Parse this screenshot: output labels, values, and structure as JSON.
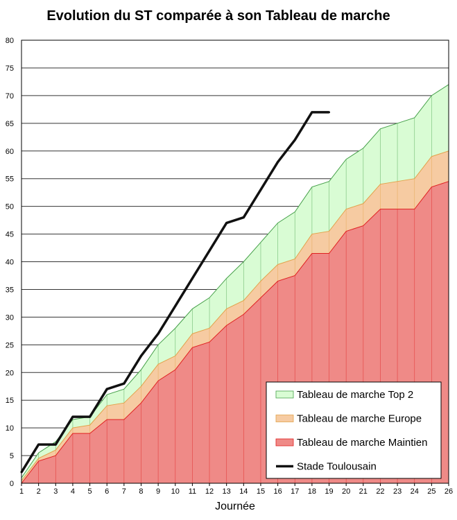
{
  "chart_data": {
    "type": "area",
    "title": "Evolution du ST comparée à son Tableau de marche",
    "xlabel": "Journée",
    "ylabel": "",
    "xlim": [
      1,
      26
    ],
    "ylim": [
      0,
      80
    ],
    "y_ticks": [
      0,
      5,
      10,
      15,
      20,
      25,
      30,
      35,
      40,
      45,
      50,
      55,
      60,
      65,
      70,
      75,
      80
    ],
    "x": [
      1,
      2,
      3,
      4,
      5,
      6,
      7,
      8,
      9,
      10,
      11,
      12,
      13,
      14,
      15,
      16,
      17,
      18,
      19,
      20,
      21,
      22,
      23,
      24,
      25,
      26
    ],
    "grid": true,
    "legend_position": "bottom-right",
    "series": [
      {
        "name": "Tableau de marche Top 2",
        "kind": "area",
        "color": "#d9fcd4",
        "stroke": "#46a04a",
        "values": [
          1,
          5.5,
          7.5,
          11.5,
          12,
          16,
          17,
          20.5,
          25,
          28,
          31.5,
          33.5,
          37,
          40,
          43.5,
          47,
          49,
          53.5,
          54.5,
          58.5,
          60.5,
          64,
          65,
          66,
          70,
          72
        ]
      },
      {
        "name": "Tableau de marche Europe",
        "kind": "area",
        "color": "#f6cba2",
        "stroke": "#e2a24a",
        "values": [
          0.5,
          4.5,
          6,
          10,
          10.5,
          14,
          14.5,
          17.5,
          21.5,
          23,
          27,
          28,
          31.5,
          33,
          36.5,
          39.5,
          40.5,
          45,
          45.5,
          49.5,
          50.5,
          54,
          54.5,
          55,
          59,
          60
        ]
      },
      {
        "name": "Tableau de marche Maintien",
        "kind": "area",
        "color": "#ef8a87",
        "stroke": "#e02020",
        "values": [
          0,
          4,
          5,
          9,
          9,
          11.5,
          11.5,
          14.5,
          18.5,
          20.5,
          24.5,
          25.5,
          28.5,
          30.5,
          33.5,
          36.5,
          37.5,
          41.5,
          41.5,
          45.5,
          46.5,
          49.5,
          49.5,
          49.5,
          53.5,
          54.5
        ]
      },
      {
        "name": "Stade Toulousain",
        "kind": "line",
        "color": "#111111",
        "x": [
          1,
          2,
          3,
          4,
          5,
          6,
          7,
          8,
          9,
          10,
          11,
          12,
          13,
          14,
          15,
          16,
          17,
          18,
          19
        ],
        "values": [
          2,
          7,
          7,
          12,
          12,
          17,
          18,
          23,
          27,
          32,
          37,
          42,
          47,
          48,
          53,
          58,
          62,
          67,
          67
        ]
      }
    ]
  }
}
